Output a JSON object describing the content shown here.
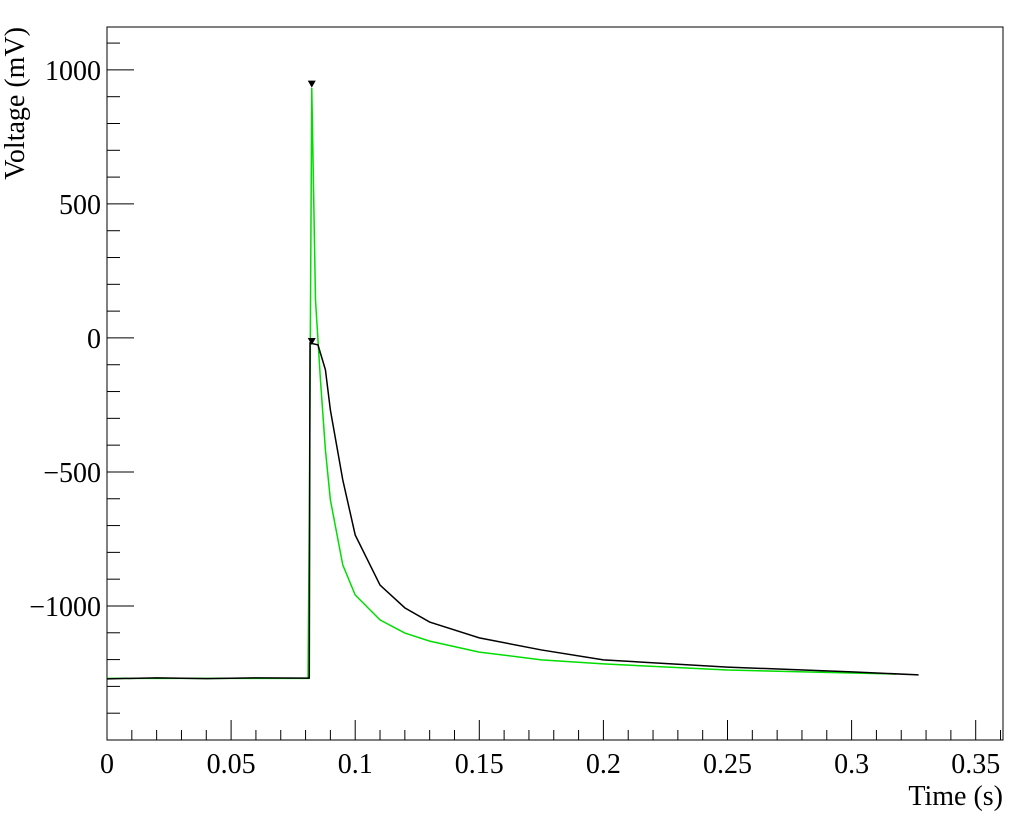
{
  "chart_data": {
    "type": "line",
    "x_label": "Time (s)",
    "y_label": "Voltage (mV)",
    "xlim": [
      0,
      0.361
    ],
    "ylim": [
      -1500,
      1160
    ],
    "xticks": [
      0,
      0.05,
      0.1,
      0.15,
      0.2,
      0.25,
      0.3,
      0.35
    ],
    "yticks": [
      {
        "value": -1000,
        "label": "−1000"
      },
      {
        "value": -500,
        "label": "−500"
      },
      0,
      500,
      1000
    ],
    "x_minor_ticks": [
      0.01,
      0.02,
      0.03,
      0.04,
      0.06,
      0.07,
      0.08,
      0.09,
      0.11,
      0.12,
      0.13,
      0.14,
      0.16,
      0.17,
      0.18,
      0.19,
      0.21,
      0.22,
      0.23,
      0.24,
      0.26,
      0.27,
      0.28,
      0.29,
      0.31,
      0.32,
      0.33,
      0.34,
      0.36
    ],
    "y_minor_ticks": [
      -1400,
      -1300,
      -1200,
      -1100,
      -900,
      -800,
      -700,
      -600,
      -400,
      -300,
      -200,
      -100,
      100,
      200,
      300,
      400,
      600,
      700,
      800,
      900,
      1100
    ],
    "series": [
      {
        "color": "#00dd00",
        "x": [
          0,
          0.081,
          0.0815,
          0.0825,
          0.084,
          0.086,
          0.088,
          0.09,
          0.095,
          0.1,
          0.11,
          0.12,
          0.13,
          0.15,
          0.175,
          0.2,
          0.25,
          0.3,
          0.318
        ],
        "values": [
          -1270,
          -1270,
          -668,
          933,
          142,
          -157,
          -418,
          -604,
          -847,
          -959,
          -1052,
          -1101,
          -1131,
          -1172,
          -1201,
          -1216,
          -1239,
          -1250,
          -1254
        ],
        "peak_x": 0.0825,
        "peak_y": 945
      },
      {
        "color": "#000000",
        "x": [
          0,
          0.02,
          0.04,
          0.06,
          0.08,
          0.0815,
          0.0818,
          0.085,
          0.088,
          0.09,
          0.095,
          0.1,
          0.11,
          0.12,
          0.13,
          0.15,
          0.175,
          0.2,
          0.25,
          0.3,
          0.327
        ],
        "values": [
          -1272,
          -1268,
          -1271,
          -1268,
          -1269,
          -1269,
          -19,
          -26,
          -119,
          -269,
          -530,
          -735,
          -922,
          -1007,
          -1060,
          -1119,
          -1164,
          -1201,
          -1228,
          -1246,
          -1257
        ],
        "peak_x": 0.0825,
        "peak_y": -15
      }
    ]
  }
}
